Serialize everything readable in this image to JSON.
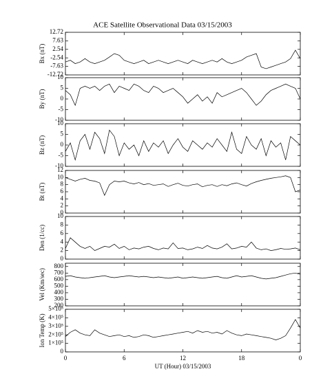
{
  "chart_data": [
    {
      "type": "line",
      "title": "ACE Satellite Observational Data  03/15/2003",
      "ylabel": "Bx (nT)",
      "ylim": [
        -12.72,
        12.72
      ],
      "yticks": [
        -12.72,
        -7.63,
        -2.54,
        2.54,
        7.63,
        12.72
      ],
      "color": "#000000",
      "x": [
        0,
        0.5,
        1,
        1.5,
        2,
        2.5,
        3,
        3.5,
        4,
        4.5,
        5,
        5.5,
        6,
        6.5,
        7,
        7.5,
        8,
        8.5,
        9,
        9.5,
        10,
        10.5,
        11,
        11.5,
        12,
        12.5,
        13,
        13.5,
        14,
        14.5,
        15,
        15.5,
        16,
        16.5,
        17,
        17.5,
        18,
        18.5,
        19,
        19.5,
        20,
        20.5,
        21,
        21.5,
        22,
        22.5,
        23,
        23.5,
        24
      ],
      "values": [
        -5,
        -4,
        -6,
        -5,
        -3,
        -5,
        -6,
        -5,
        -4,
        -2,
        0,
        -1,
        -4,
        -5,
        -6,
        -5,
        -4,
        -6,
        -5,
        -4,
        -5,
        -6,
        -5,
        -4,
        -5,
        -6,
        -4,
        -5,
        -6,
        -5,
        -4,
        -5,
        -3,
        -5,
        -6,
        -5,
        -4,
        -2,
        -1,
        0,
        -8,
        -9,
        -8,
        -7,
        -6,
        -5,
        -3,
        2,
        -3
      ]
    },
    {
      "type": "line",
      "ylabel": "By (nT)",
      "ylim": [
        -10,
        10
      ],
      "yticks": [
        -10,
        -5,
        0,
        5,
        10
      ],
      "color": "#000000",
      "x": [
        0,
        0.5,
        1,
        1.5,
        2,
        2.5,
        3,
        3.5,
        4,
        4.5,
        5,
        5.5,
        6,
        6.5,
        7,
        7.5,
        8,
        8.5,
        9,
        9.5,
        10,
        10.5,
        11,
        11.5,
        12,
        12.5,
        13,
        13.5,
        14,
        14.5,
        15,
        15.5,
        16,
        16.5,
        17,
        17.5,
        18,
        18.5,
        19,
        19.5,
        20,
        20.5,
        21,
        21.5,
        22,
        22.5,
        23,
        23.5,
        24
      ],
      "values": [
        4,
        2,
        -3,
        5,
        6,
        5,
        6,
        4,
        6,
        7,
        3,
        6,
        5,
        4,
        7,
        6,
        4,
        3,
        6,
        5,
        3,
        4,
        5,
        3,
        1,
        -2,
        0,
        2,
        -1,
        1,
        -2,
        3,
        1,
        2,
        3,
        4,
        5,
        3,
        0,
        -3,
        -1,
        2,
        4,
        5,
        6,
        7,
        6,
        5,
        0
      ]
    },
    {
      "type": "line",
      "ylabel": "Bz (nT)",
      "ylim": [
        -10,
        10
      ],
      "yticks": [
        -10,
        -5,
        0,
        5,
        10
      ],
      "color": "#000000",
      "x": [
        0,
        0.5,
        1,
        1.5,
        2,
        2.5,
        3,
        3.5,
        4,
        4.5,
        5,
        5.5,
        6,
        6.5,
        7,
        7.5,
        8,
        8.5,
        9,
        9.5,
        10,
        10.5,
        11,
        11.5,
        12,
        12.5,
        13,
        13.5,
        14,
        14.5,
        15,
        15.5,
        16,
        16.5,
        17,
        17.5,
        18,
        18.5,
        19,
        19.5,
        20,
        20.5,
        21,
        21.5,
        22,
        22.5,
        23,
        23.5,
        24
      ],
      "values": [
        -3,
        1,
        -7,
        2,
        5,
        -2,
        6,
        3,
        -4,
        7,
        4,
        -5,
        1,
        -2,
        0,
        -5,
        2,
        -3,
        1,
        -1,
        2,
        -4,
        0,
        3,
        -1,
        -3,
        2,
        0,
        -2,
        1,
        -1,
        3,
        0,
        -3,
        6,
        -2,
        -4,
        4,
        0,
        -2,
        3,
        -5,
        2,
        -1,
        1,
        -7,
        4,
        2,
        0
      ]
    },
    {
      "type": "line",
      "ylabel": "Bt (nT)",
      "ylim": [
        0,
        12
      ],
      "yticks": [
        0,
        2,
        4,
        6,
        8,
        10,
        12
      ],
      "color": "#000000",
      "x": [
        0,
        0.5,
        1,
        1.5,
        2,
        2.5,
        3,
        3.5,
        4,
        4.5,
        5,
        5.5,
        6,
        6.5,
        7,
        7.5,
        8,
        8.5,
        9,
        9.5,
        10,
        10.5,
        11,
        11.5,
        12,
        12.5,
        13,
        13.5,
        14,
        14.5,
        15,
        15.5,
        16,
        16.5,
        17,
        17.5,
        18,
        18.5,
        19,
        19.5,
        20,
        20.5,
        21,
        21.5,
        22,
        22.5,
        23,
        23.5,
        24
      ],
      "values": [
        10,
        9.5,
        9,
        9.5,
        9.8,
        9.2,
        9,
        8.5,
        5,
        8,
        9,
        8.8,
        9,
        8.5,
        8.2,
        8.6,
        8,
        8.3,
        7.8,
        8,
        8.2,
        7.5,
        8,
        8.4,
        7.8,
        7.6,
        8,
        8.2,
        7.4,
        7.8,
        8,
        7.5,
        8,
        7.7,
        8.2,
        8.5,
        8,
        7.6,
        8.3,
        8.8,
        9.2,
        9.5,
        9.8,
        10,
        10.2,
        10.5,
        10,
        6,
        6.5
      ]
    },
    {
      "type": "line",
      "ylabel": "Den (1/cc)",
      "ylim": [
        0,
        10
      ],
      "yticks": [
        0,
        2,
        4,
        6,
        8,
        10
      ],
      "color": "#000000",
      "x": [
        0,
        0.5,
        1,
        1.5,
        2,
        2.5,
        3,
        3.5,
        4,
        4.5,
        5,
        5.5,
        6,
        6.5,
        7,
        7.5,
        8,
        8.5,
        9,
        9.5,
        10,
        10.5,
        11,
        11.5,
        12,
        12.5,
        13,
        13.5,
        14,
        14.5,
        15,
        15.5,
        16,
        16.5,
        17,
        17.5,
        18,
        18.5,
        19,
        19.5,
        20,
        20.5,
        21,
        21.5,
        22,
        22.5,
        23,
        23.5,
        24
      ],
      "values": [
        2.5,
        5,
        4,
        3,
        2.5,
        3,
        2,
        2.5,
        3,
        2.8,
        3.5,
        2.5,
        3,
        2.2,
        2.6,
        2.4,
        2.8,
        3,
        2.5,
        2.2,
        2.6,
        2.4,
        3.8,
        2.5,
        2.6,
        2.2,
        2.4,
        2.8,
        2.5,
        3.2,
        2.6,
        2.4,
        2.8,
        3.6,
        2.4,
        2.6,
        3,
        2.8,
        4,
        2.6,
        2.2,
        2.4,
        2,
        2.2,
        2.5,
        2.3,
        2.4,
        2.6,
        2.2
      ]
    },
    {
      "type": "line",
      "ylabel": "Vel (Km/sec)",
      "ylim": [
        200,
        850
      ],
      "yticks": [
        200,
        300,
        400,
        500,
        600,
        700,
        800
      ],
      "color": "#000000",
      "x": [
        0,
        0.5,
        1,
        1.5,
        2,
        2.5,
        3,
        3.5,
        4,
        4.5,
        5,
        5.5,
        6,
        6.5,
        7,
        7.5,
        8,
        8.5,
        9,
        9.5,
        10,
        10.5,
        11,
        11.5,
        12,
        12.5,
        13,
        13.5,
        14,
        14.5,
        15,
        15.5,
        16,
        16.5,
        17,
        17.5,
        18,
        18.5,
        19,
        19.5,
        20,
        20.5,
        21,
        21.5,
        22,
        22.5,
        23,
        23.5,
        24
      ],
      "values": [
        650,
        660,
        640,
        630,
        620,
        630,
        640,
        650,
        660,
        640,
        630,
        640,
        650,
        660,
        650,
        640,
        650,
        640,
        630,
        640,
        630,
        620,
        630,
        640,
        620,
        630,
        640,
        630,
        620,
        630,
        640,
        650,
        630,
        620,
        640,
        660,
        640,
        650,
        660,
        640,
        620,
        610,
        620,
        630,
        650,
        670,
        690,
        700,
        680
      ]
    },
    {
      "type": "line",
      "ylabel": "Ion Temp (K)",
      "ylim": [
        0,
        500000
      ],
      "yticks": [
        0,
        {
          "value": 100000,
          "label": "1×10⁵"
        },
        {
          "value": 200000,
          "label": "2×10⁵"
        },
        {
          "value": 300000,
          "label": "3×10⁵"
        },
        {
          "value": 400000,
          "label": "4×10⁵"
        },
        {
          "value": 500000,
          "label": "5×10⁵"
        }
      ],
      "color": "#000000",
      "xlabel": "UT (Hour)  03/15/2003",
      "xlim": [
        0,
        24
      ],
      "xticks": [
        0,
        6,
        12,
        18,
        {
          "value": 24,
          "label": "0"
        }
      ],
      "x": [
        0,
        0.5,
        1,
        1.5,
        2,
        2.5,
        3,
        3.5,
        4,
        4.5,
        5,
        5.5,
        6,
        6.5,
        7,
        7.5,
        8,
        8.5,
        9,
        9.5,
        10,
        10.5,
        11,
        11.5,
        12,
        12.5,
        13,
        13.5,
        14,
        14.5,
        15,
        15.5,
        16,
        16.5,
        17,
        17.5,
        18,
        18.5,
        19,
        19.5,
        20,
        20.5,
        21,
        21.5,
        22,
        22.5,
        23,
        23.5,
        24
      ],
      "values": [
        180000,
        230000,
        260000,
        220000,
        200000,
        190000,
        260000,
        220000,
        200000,
        180000,
        190000,
        200000,
        180000,
        190000,
        170000,
        180000,
        200000,
        190000,
        170000,
        180000,
        190000,
        200000,
        210000,
        220000,
        230000,
        240000,
        220000,
        250000,
        230000,
        240000,
        220000,
        230000,
        210000,
        250000,
        220000,
        200000,
        190000,
        210000,
        200000,
        190000,
        180000,
        170000,
        160000,
        140000,
        160000,
        190000,
        280000,
        380000,
        280000
      ]
    }
  ]
}
